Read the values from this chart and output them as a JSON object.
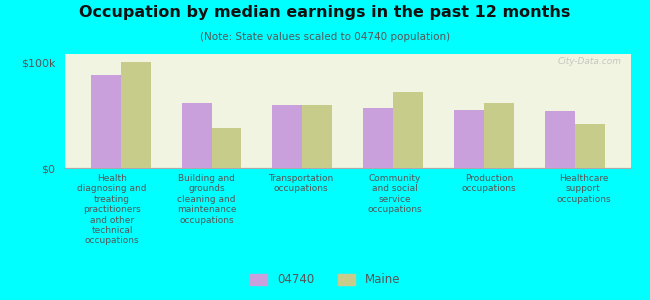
{
  "title": "Occupation by median earnings in the past 12 months",
  "subtitle": "(Note: State values scaled to 04740 population)",
  "categories": [
    "Health\ndiagnosing and\ntreating\npractitioners\nand other\ntechnical\noccupations",
    "Building and\ngrounds\ncleaning and\nmaintenance\noccupations",
    "Transportation\noccupations",
    "Community\nand social\nservice\noccupations",
    "Production\noccupations",
    "Healthcare\nsupport\noccupations"
  ],
  "values_04740": [
    88000,
    62000,
    60000,
    57000,
    55000,
    54000
  ],
  "values_maine": [
    100000,
    38000,
    60000,
    72000,
    62000,
    42000
  ],
  "color_04740": "#c9a0dc",
  "color_maine": "#c8cc8a",
  "background_chart": "#f0f4e0",
  "background_fig": "#00ffff",
  "ylabel_ticks": [
    "$0",
    "$100k"
  ],
  "ytick_values": [
    0,
    100000
  ],
  "ylim": [
    0,
    108000
  ],
  "legend_04740": "04740",
  "legend_maine": "Maine",
  "watermark": "City-Data.com"
}
